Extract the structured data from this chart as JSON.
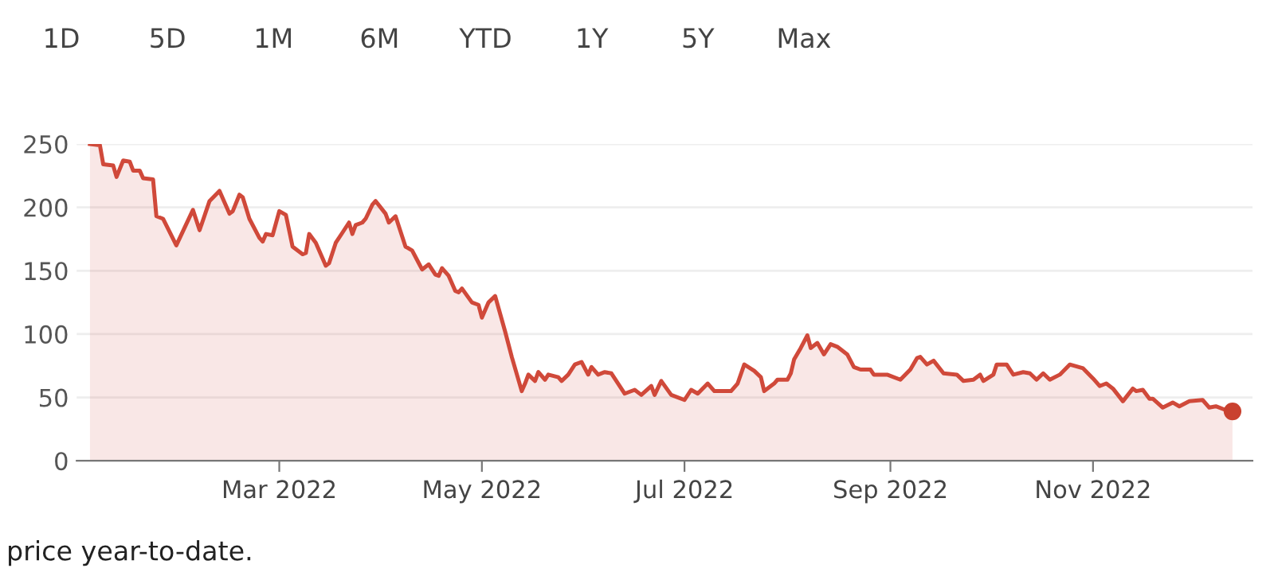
{
  "chart_data": {
    "type": "area",
    "annotations": [
      "1D",
      "5D",
      "1M",
      "6M",
      "YTD",
      "1Y",
      "5Y",
      "Max",
      "price year-to-date."
    ],
    "x": [
      "2022-01-03",
      "2022-01-06",
      "2022-01-07",
      "2022-01-10",
      "2022-01-11",
      "2022-01-13",
      "2022-01-15",
      "2022-01-16",
      "2022-01-18",
      "2022-01-19",
      "2022-01-22",
      "2022-01-23",
      "2022-01-25",
      "2022-01-29",
      "2022-02-03",
      "2022-02-05",
      "2022-02-08",
      "2022-02-11",
      "2022-02-14",
      "2022-02-15",
      "2022-02-17",
      "2022-02-18",
      "2022-02-20",
      "2022-02-23",
      "2022-02-24",
      "2022-02-25",
      "2022-02-27",
      "2022-03-01",
      "2022-03-03",
      "2022-03-05",
      "2022-03-08",
      "2022-03-09",
      "2022-03-10",
      "2022-03-12",
      "2022-03-15",
      "2022-03-16",
      "2022-03-18",
      "2022-03-20",
      "2022-03-22",
      "2022-03-23",
      "2022-03-24",
      "2022-03-26",
      "2022-03-27",
      "2022-03-29",
      "2022-03-30",
      "2022-04-02",
      "2022-04-03",
      "2022-04-05",
      "2022-04-08",
      "2022-04-10",
      "2022-04-12",
      "2022-04-13",
      "2022-04-15",
      "2022-04-17",
      "2022-04-18",
      "2022-04-19",
      "2022-04-21",
      "2022-04-23",
      "2022-04-24",
      "2022-04-25",
      "2022-04-28",
      "2022-04-30",
      "2022-05-01",
      "2022-05-03",
      "2022-05-05",
      "2022-05-08",
      "2022-05-10",
      "2022-05-13",
      "2022-05-14",
      "2022-05-15",
      "2022-05-17",
      "2022-05-18",
      "2022-05-20",
      "2022-05-21",
      "2022-05-24",
      "2022-05-25",
      "2022-05-27",
      "2022-05-29",
      "2022-05-31",
      "2022-06-02",
      "2022-06-03",
      "2022-06-05",
      "2022-06-07",
      "2022-06-09",
      "2022-06-13",
      "2022-06-16",
      "2022-06-18",
      "2022-06-21",
      "2022-06-22",
      "2022-06-24",
      "2022-06-27",
      "2022-07-01",
      "2022-07-03",
      "2022-07-05",
      "2022-07-08",
      "2022-07-10",
      "2022-07-15",
      "2022-07-17",
      "2022-07-19",
      "2022-07-22",
      "2022-07-24",
      "2022-07-25",
      "2022-07-28",
      "2022-07-29",
      "2022-08-01",
      "2022-08-02",
      "2022-08-03",
      "2022-08-05",
      "2022-08-07",
      "2022-08-08",
      "2022-08-10",
      "2022-08-12",
      "2022-08-14",
      "2022-08-16",
      "2022-08-19",
      "2022-08-21",
      "2022-08-23",
      "2022-08-26",
      "2022-08-27",
      "2022-08-31",
      "2022-09-04",
      "2022-09-07",
      "2022-09-09",
      "2022-09-10",
      "2022-09-12",
      "2022-09-14",
      "2022-09-17",
      "2022-09-21",
      "2022-09-23",
      "2022-09-26",
      "2022-09-28",
      "2022-09-29",
      "2022-10-02",
      "2022-10-03",
      "2022-10-06",
      "2022-10-08",
      "2022-10-11",
      "2022-10-13",
      "2022-10-15",
      "2022-10-17",
      "2022-10-19",
      "2022-10-22",
      "2022-10-25",
      "2022-10-29",
      "2022-11-01",
      "2022-11-03",
      "2022-11-05",
      "2022-11-07",
      "2022-11-10",
      "2022-11-13",
      "2022-11-14",
      "2022-11-16",
      "2022-11-18",
      "2022-11-19",
      "2022-11-22",
      "2022-11-25",
      "2022-11-27",
      "2022-11-30",
      "2022-12-04",
      "2022-12-06",
      "2022-12-08",
      "2022-12-11",
      "2022-12-13"
    ],
    "series": [
      {
        "color": "#d0493a",
        "values": [
          250,
          249,
          234,
          233,
          224,
          237,
          236,
          229,
          229,
          223,
          222,
          193,
          191,
          170,
          198,
          182,
          205,
          213,
          195,
          197,
          210,
          208,
          191,
          176,
          173,
          179,
          178,
          197,
          194,
          169,
          163,
          164,
          179,
          172,
          154,
          156,
          172,
          180,
          188,
          179,
          186,
          188,
          191,
          202,
          205,
          195,
          188,
          193,
          169,
          166,
          156,
          151,
          155,
          147,
          146,
          152,
          146,
          134,
          133,
          136,
          125,
          123,
          113,
          125,
          130,
          102,
          82,
          55,
          61,
          68,
          63,
          70,
          64,
          68,
          66,
          63,
          68,
          76,
          78,
          68,
          74,
          68,
          70,
          69,
          53,
          56,
          52,
          59,
          52,
          63,
          52,
          48,
          56,
          53,
          61,
          55,
          55,
          61,
          76,
          71,
          66,
          55,
          61,
          64,
          64,
          69,
          80,
          89,
          99,
          89,
          93,
          84,
          92,
          90,
          84,
          74,
          72,
          72,
          68,
          68,
          64,
          72,
          81,
          82,
          76,
          79,
          69,
          68,
          63,
          64,
          68,
          63,
          68,
          76,
          76,
          68,
          70,
          69,
          64,
          69,
          64,
          68,
          76,
          73,
          65,
          59,
          61,
          57,
          47,
          57,
          55,
          56,
          49,
          49,
          42,
          46,
          43,
          47,
          48,
          42,
          43,
          40,
          39
        ]
      },
      {
        "type": "scatter",
        "color": "#c9412f",
        "x": [
          "2022-12-13"
        ],
        "values": [
          39
        ]
      }
    ],
    "xlim": [
      "2021-12-30",
      "2022-12-19"
    ],
    "xticks": [
      {
        "value": "2022-03-01",
        "label": "Mar 2022"
      },
      {
        "value": "2022-05-01",
        "label": "May 2022"
      },
      {
        "value": "2022-07-01",
        "label": "Jul 2022"
      },
      {
        "value": "2022-09-01",
        "label": "Sep 2022"
      },
      {
        "value": "2022-11-01",
        "label": "Nov 2022"
      }
    ],
    "ylim": [
      0,
      250
    ],
    "yticks": [
      0,
      50,
      100,
      150,
      200,
      250
    ],
    "grid": "y",
    "legend": false
  }
}
